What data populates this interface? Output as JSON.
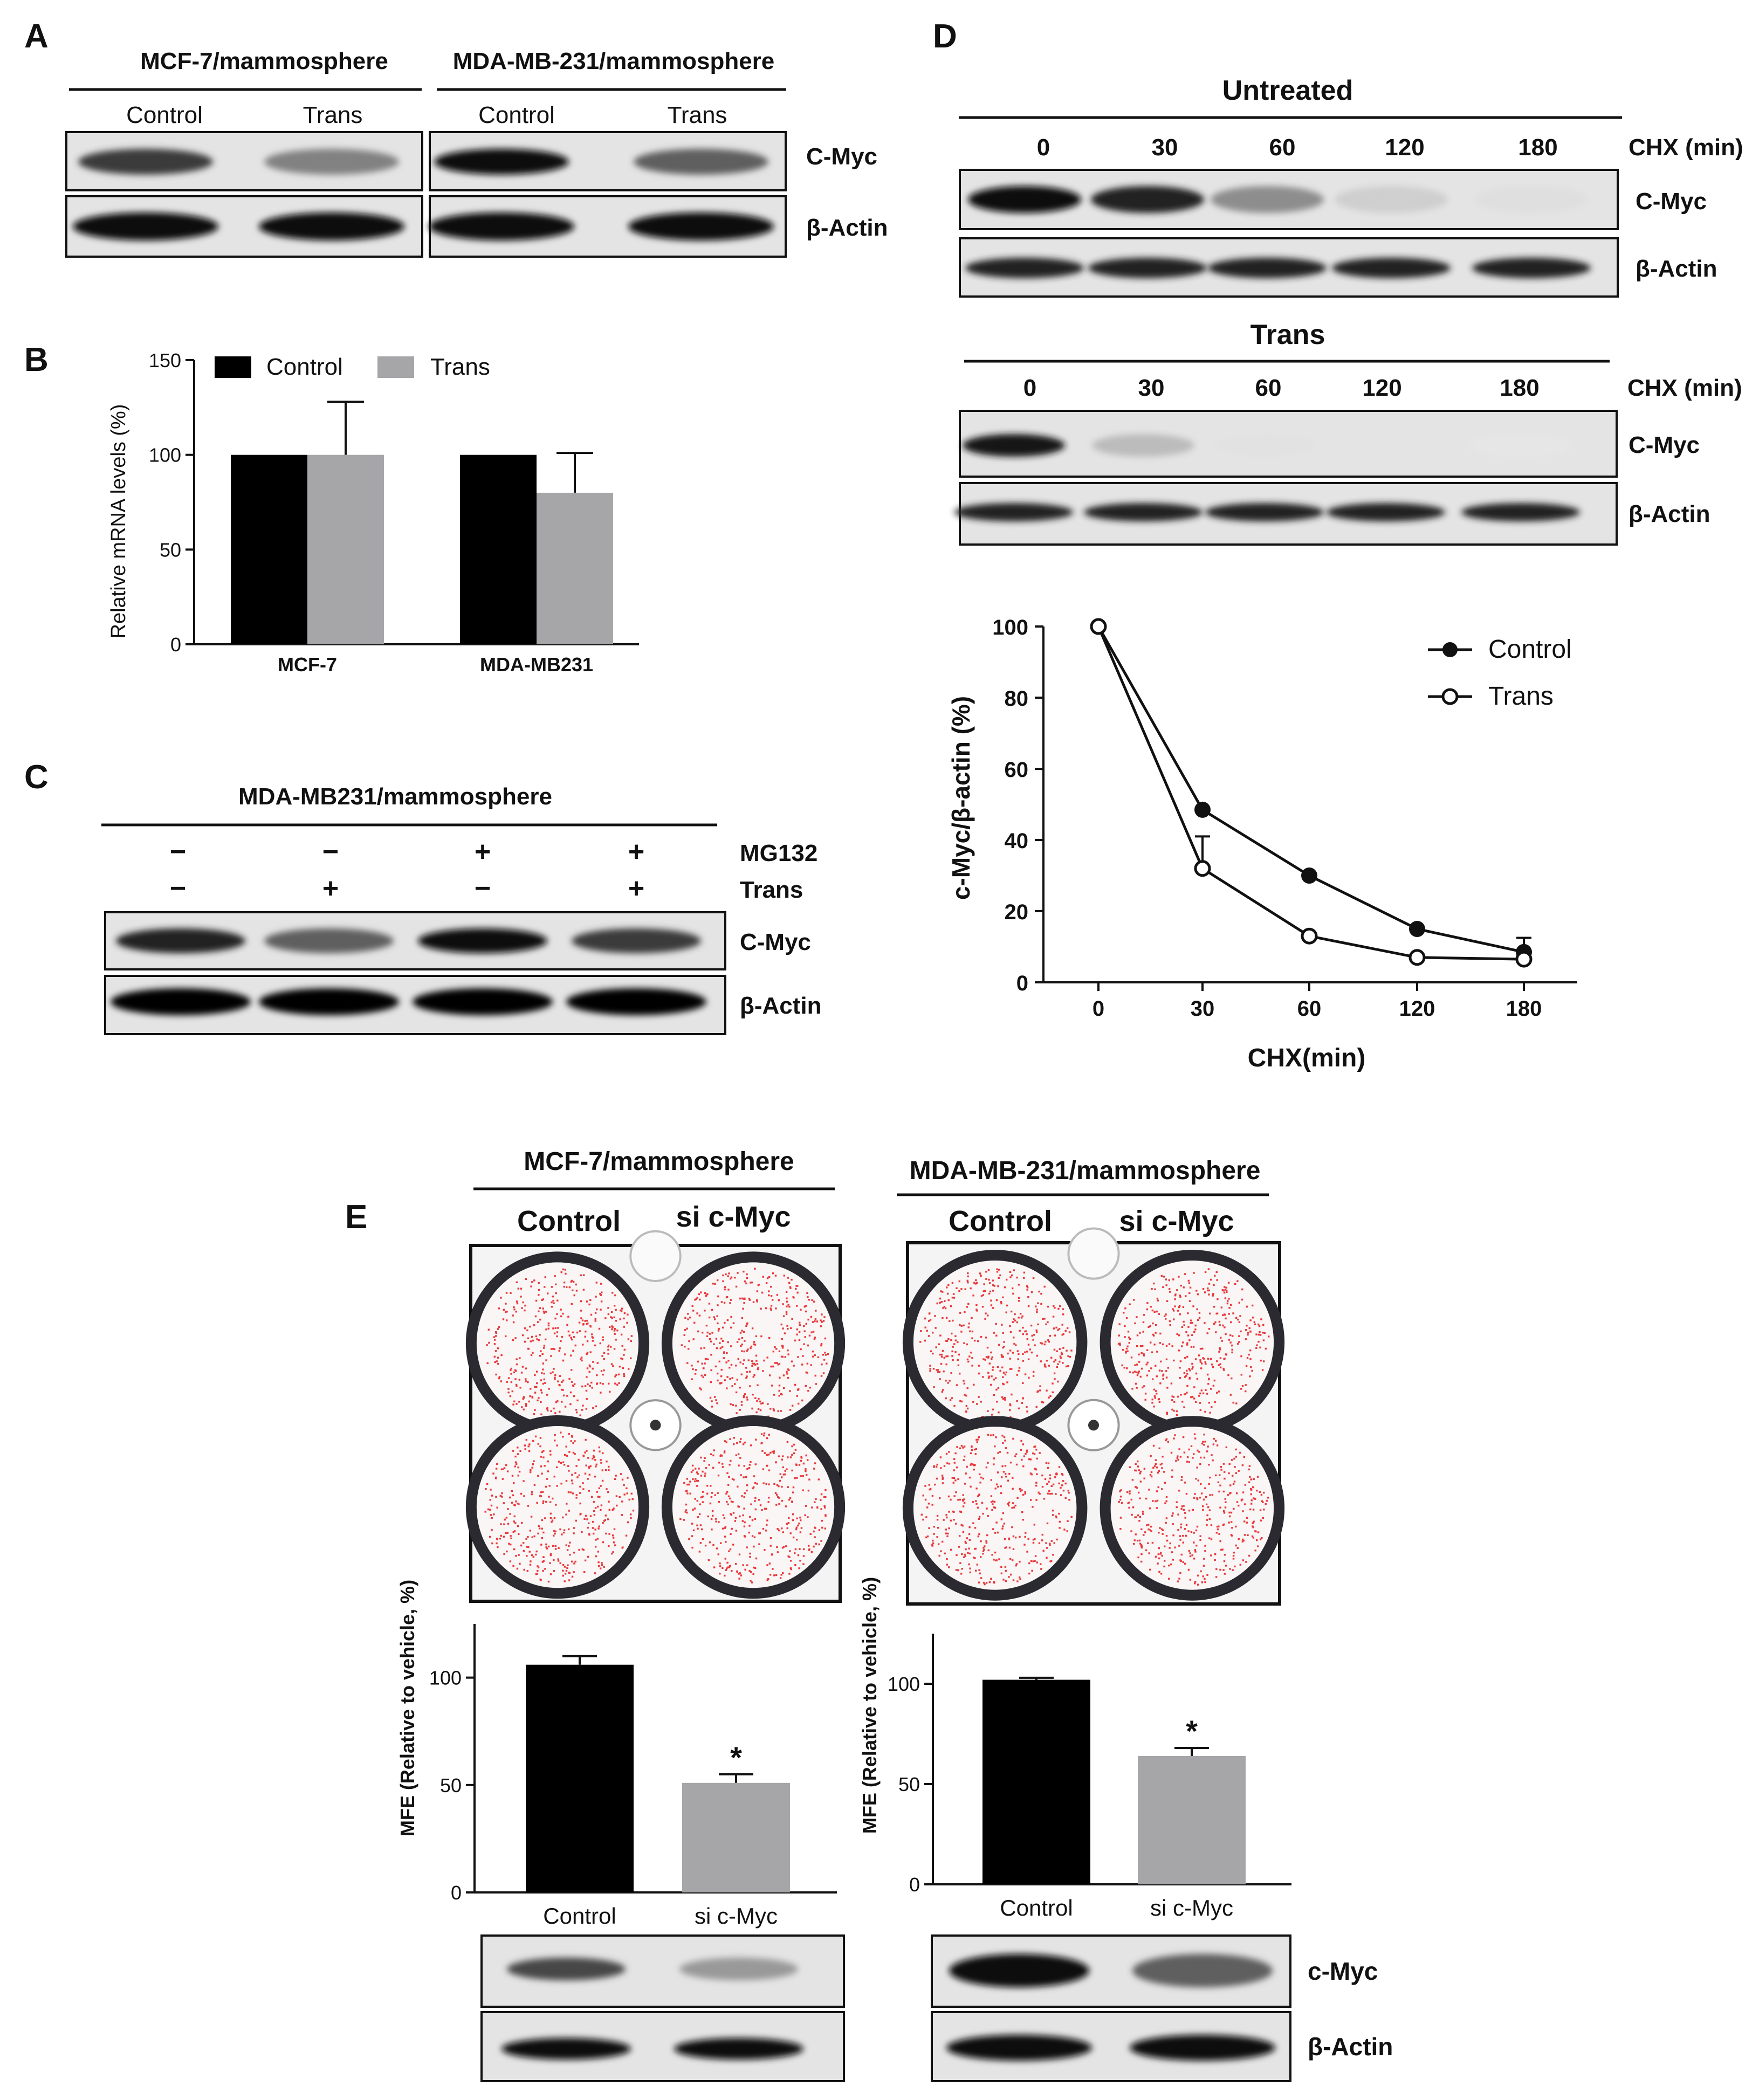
{
  "panel_letters": {
    "a": "A",
    "b": "B",
    "c": "C",
    "d": "D",
    "e": "E"
  },
  "panel_a": {
    "group1": "MCF-7/mammosphere",
    "group2": "MDA-MB-231/mammosphere",
    "lanes": [
      "Control",
      "Trans",
      "Control",
      "Trans"
    ],
    "proteins": [
      "C-Myc",
      "β-Actin"
    ],
    "cmyc_intensity": [
      0.75,
      0.45,
      0.95,
      0.6
    ]
  },
  "panel_c": {
    "header": "MDA-MB231/mammosphere",
    "row_labels": [
      "MG132",
      "Trans"
    ],
    "mg132_signs": [
      "−",
      "−",
      "+",
      "+"
    ],
    "trans_signs": [
      "−",
      "+",
      "−",
      "+"
    ],
    "proteins": [
      "C-Myc",
      "β-Actin"
    ],
    "cmyc_intensity": [
      0.85,
      0.6,
      0.95,
      0.75
    ]
  },
  "panel_d": {
    "blot1_title": "Untreated",
    "blot2_title": "Trans",
    "chx_label": "CHX (min)",
    "timepoints": [
      "0",
      "30",
      "60",
      "120",
      "180"
    ],
    "proteins": [
      "C-Myc",
      "β-Actin"
    ],
    "untreated_cmyc_intensity": [
      0.95,
      0.85,
      0.4,
      0.12,
      0.05
    ],
    "trans_cmyc_intensity": [
      0.9,
      0.2,
      0.04,
      0.03,
      0.02
    ]
  },
  "panel_e": {
    "group1": "MCF-7/mammosphere",
    "group2": "MDA-MB-231/mammosphere",
    "plate_labels": [
      "Control",
      "si c-Myc"
    ],
    "proteins": [
      "c-Myc",
      "β-Actin"
    ],
    "cmyc_intensity_left": [
      0.7,
      0.35
    ],
    "cmyc_intensity_right": [
      0.95,
      0.6
    ]
  },
  "colors": {
    "control": "#000000",
    "trans": "#a6a6a9",
    "colony": "#e8393c",
    "blot_bg": "#e4e4e4"
  },
  "chart_data": [
    {
      "id": "B",
      "type": "bar",
      "ylabel": "Relative mRNA levels (%)",
      "categories": [
        "MCF-7",
        "MDA-MB231"
      ],
      "series": [
        {
          "name": "Control",
          "values": [
            100,
            100
          ],
          "errors": [
            0,
            0
          ]
        },
        {
          "name": "Trans",
          "values": [
            100,
            80
          ],
          "errors": [
            28,
            21
          ]
        }
      ],
      "ylim": [
        0,
        150
      ],
      "yticks": [
        "0",
        "50",
        "100",
        "150"
      ],
      "legend": "top"
    },
    {
      "id": "D",
      "type": "line",
      "xlabel": "CHX(min)",
      "ylabel": "c-Myc/β-actin (%)",
      "x": [
        "0",
        "30",
        "60",
        "120",
        "180"
      ],
      "series": [
        {
          "name": "Control",
          "values": [
            100,
            48.5,
            30,
            15,
            8.5
          ],
          "errors": [
            0,
            0,
            0,
            0,
            4
          ]
        },
        {
          "name": "Trans",
          "values": [
            100,
            32,
            13,
            7,
            6.5
          ],
          "errors": [
            0,
            9,
            0,
            0,
            0
          ]
        }
      ],
      "ylim": [
        0,
        100
      ],
      "yticks": [
        "0",
        "20",
        "40",
        "60",
        "80",
        "100"
      ],
      "legend": "top-right"
    },
    {
      "id": "E-left",
      "type": "bar",
      "ylabel": "MFE (Relative to vehicle, %)",
      "categories": [
        "Control",
        "si c-Myc"
      ],
      "values": [
        106,
        51
      ],
      "errors": [
        4,
        4
      ],
      "significance": [
        "",
        "*"
      ],
      "ylim": [
        0,
        125
      ],
      "yticks": [
        "0",
        "50",
        "100"
      ]
    },
    {
      "id": "E-right",
      "type": "bar",
      "ylabel": "MFE (Relative to vehicle, %)",
      "categories": [
        "Control",
        "si c-Myc"
      ],
      "values": [
        102,
        64
      ],
      "errors": [
        1,
        4
      ],
      "significance": [
        "",
        "*"
      ],
      "ylim": [
        0,
        125
      ],
      "yticks": [
        "0",
        "50",
        "100"
      ]
    }
  ]
}
